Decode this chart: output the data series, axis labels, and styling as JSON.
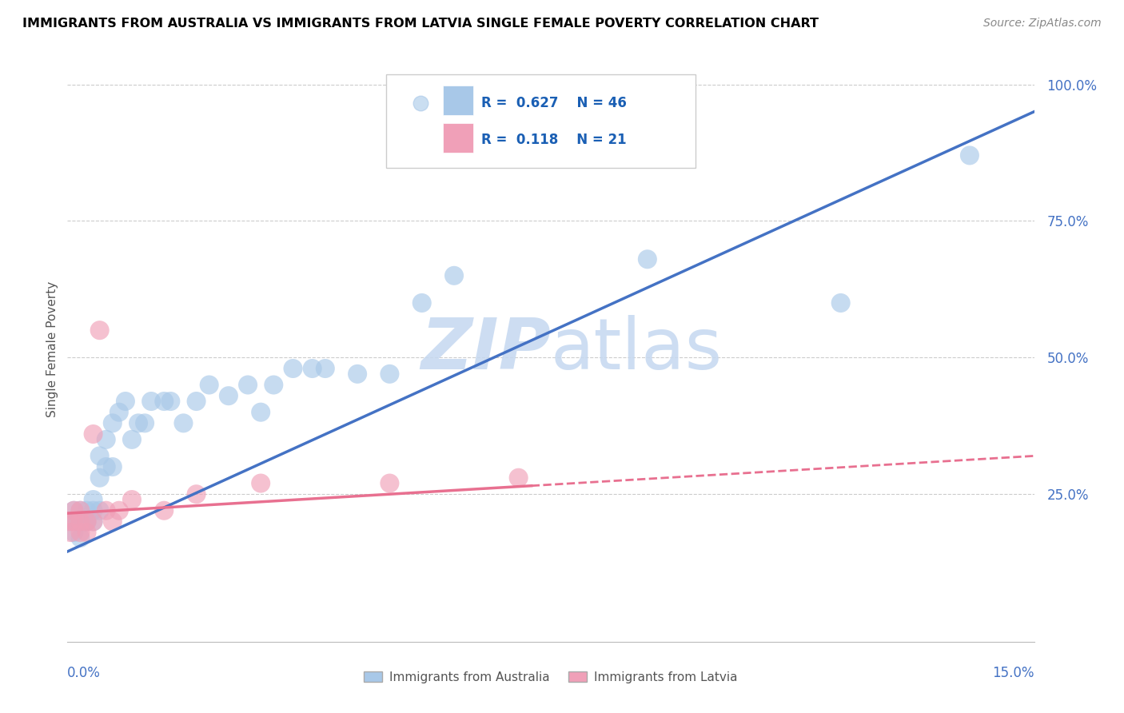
{
  "title": "IMMIGRANTS FROM AUSTRALIA VS IMMIGRANTS FROM LATVIA SINGLE FEMALE POVERTY CORRELATION CHART",
  "source": "Source: ZipAtlas.com",
  "ylabel": "Single Female Poverty",
  "xlim": [
    0.0,
    0.15
  ],
  "ylim": [
    -0.02,
    1.05
  ],
  "R_australia": 0.627,
  "N_australia": 46,
  "R_latvia": 0.118,
  "N_latvia": 21,
  "color_australia": "#A8C8E8",
  "color_latvia": "#F0A0B8",
  "color_line_australia": "#4472C4",
  "color_line_latvia": "#E87090",
  "watermark_color": "#C5D8F0",
  "grid_color": "#CCCCCC",
  "tick_color": "#4472C4",
  "aus_x": [
    0.0005,
    0.001,
    0.001,
    0.0015,
    0.002,
    0.002,
    0.002,
    0.0025,
    0.003,
    0.003,
    0.003,
    0.004,
    0.004,
    0.004,
    0.005,
    0.005,
    0.005,
    0.006,
    0.006,
    0.007,
    0.007,
    0.008,
    0.009,
    0.01,
    0.011,
    0.012,
    0.013,
    0.015,
    0.016,
    0.018,
    0.02,
    0.022,
    0.025,
    0.028,
    0.03,
    0.032,
    0.035,
    0.038,
    0.04,
    0.045,
    0.05,
    0.055,
    0.06,
    0.09,
    0.12,
    0.14
  ],
  "aus_y": [
    0.2,
    0.18,
    0.22,
    0.2,
    0.17,
    0.2,
    0.22,
    0.2,
    0.2,
    0.2,
    0.22,
    0.2,
    0.22,
    0.24,
    0.28,
    0.32,
    0.22,
    0.3,
    0.35,
    0.3,
    0.38,
    0.4,
    0.42,
    0.35,
    0.38,
    0.38,
    0.42,
    0.42,
    0.42,
    0.38,
    0.42,
    0.45,
    0.43,
    0.45,
    0.4,
    0.45,
    0.48,
    0.48,
    0.48,
    0.47,
    0.47,
    0.6,
    0.65,
    0.68,
    0.6,
    0.87
  ],
  "lat_x": [
    0.0003,
    0.0005,
    0.001,
    0.001,
    0.002,
    0.002,
    0.002,
    0.003,
    0.003,
    0.004,
    0.004,
    0.005,
    0.006,
    0.007,
    0.008,
    0.01,
    0.015,
    0.02,
    0.03,
    0.05,
    0.07
  ],
  "lat_y": [
    0.2,
    0.18,
    0.2,
    0.22,
    0.18,
    0.2,
    0.22,
    0.18,
    0.2,
    0.36,
    0.2,
    0.55,
    0.22,
    0.2,
    0.22,
    0.24,
    0.22,
    0.25,
    0.27,
    0.27,
    0.28
  ],
  "line_aus_x0": 0.0,
  "line_aus_y0": 0.145,
  "line_aus_x1": 0.15,
  "line_aus_y1": 0.95,
  "line_lat_x0": 0.0,
  "line_lat_y0": 0.215,
  "line_lat_x1": 0.15,
  "line_lat_y1": 0.32
}
